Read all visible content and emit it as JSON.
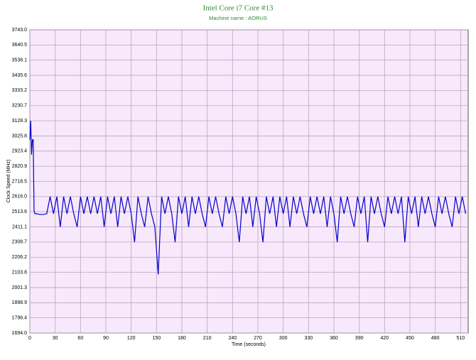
{
  "chart_data": {
    "type": "line",
    "title": "Intel Core i7 Core #13",
    "subtitle": "Machine name : AORUS",
    "x_label": "Time (seconds)",
    "y_label": "Clock Speed (MHz)",
    "xlim": [
      0,
      519
    ],
    "ylim": [
      1694,
      3743
    ],
    "xticks": [
      0,
      30,
      60,
      90,
      120,
      150,
      180,
      210,
      240,
      270,
      300,
      330,
      360,
      390,
      420,
      450,
      480,
      510
    ],
    "yticks": [
      {
        "value": 1694,
        "label": "1694.0"
      },
      1796.4,
      1898.9,
      2001.3,
      2103.8,
      2206.2,
      2308.7,
      2411.1,
      2513.6,
      {
        "value": 2616,
        "label": "2616.0"
      },
      2718.5,
      2820.9,
      2923.4,
      3025.8,
      3128.3,
      3230.7,
      3333.2,
      3435.6,
      3538.1,
      3640.5,
      {
        "value": 3743,
        "label": "3743.0"
      }
    ],
    "grid": true,
    "series": [
      {
        "color": "#0000cc",
        "x": [
          0,
          1,
          2,
          3,
          4,
          5,
          6,
          8,
          12,
          16,
          20,
          24,
          28,
          32,
          36,
          40,
          44,
          48,
          52,
          56,
          60,
          64,
          68,
          72,
          76,
          80,
          84,
          88,
          92,
          96,
          100,
          104,
          108,
          112,
          116,
          120,
          124,
          128,
          132,
          136,
          140,
          144,
          148,
          152,
          156,
          160,
          164,
          168,
          172,
          176,
          180,
          184,
          188,
          192,
          196,
          200,
          204,
          208,
          212,
          216,
          220,
          224,
          228,
          232,
          236,
          240,
          244,
          248,
          252,
          256,
          260,
          264,
          268,
          272,
          276,
          280,
          284,
          288,
          292,
          296,
          300,
          304,
          308,
          312,
          316,
          320,
          324,
          328,
          332,
          336,
          340,
          344,
          348,
          352,
          356,
          360,
          364,
          368,
          372,
          376,
          380,
          384,
          388,
          392,
          396,
          400,
          404,
          408,
          412,
          416,
          420,
          424,
          428,
          432,
          436,
          440,
          444,
          448,
          452,
          456,
          460,
          464,
          468,
          472,
          476,
          480,
          484,
          488,
          492,
          496,
          500,
          504,
          508,
          512,
          516
        ],
        "values": [
          3000,
          3128,
          2900,
          3000,
          3000,
          2520,
          2500,
          2500,
          2495,
          2495,
          2500,
          2616,
          2500,
          2616,
          2411,
          2616,
          2500,
          2616,
          2500,
          2411,
          2616,
          2500,
          2616,
          2500,
          2616,
          2500,
          2616,
          2411,
          2616,
          2500,
          2616,
          2411,
          2616,
          2500,
          2616,
          2500,
          2308,
          2616,
          2500,
          2411,
          2616,
          2500,
          2411,
          2090,
          2616,
          2500,
          2616,
          2500,
          2308,
          2616,
          2500,
          2616,
          2411,
          2616,
          2500,
          2616,
          2500,
          2411,
          2616,
          2500,
          2616,
          2500,
          2411,
          2616,
          2500,
          2616,
          2500,
          2308,
          2616,
          2500,
          2616,
          2411,
          2616,
          2500,
          2308,
          2616,
          2500,
          2616,
          2411,
          2616,
          2500,
          2616,
          2411,
          2616,
          2500,
          2616,
          2500,
          2411,
          2616,
          2500,
          2616,
          2500,
          2616,
          2411,
          2616,
          2500,
          2308,
          2616,
          2500,
          2616,
          2500,
          2411,
          2616,
          2500,
          2616,
          2308,
          2616,
          2500,
          2616,
          2500,
          2411,
          2616,
          2500,
          2616,
          2500,
          2616,
          2308,
          2616,
          2500,
          2616,
          2411,
          2616,
          2500,
          2616,
          2500,
          2411,
          2616,
          2500,
          2616,
          2500,
          2411,
          2616,
          2500,
          2616,
          2500
        ]
      }
    ]
  }
}
